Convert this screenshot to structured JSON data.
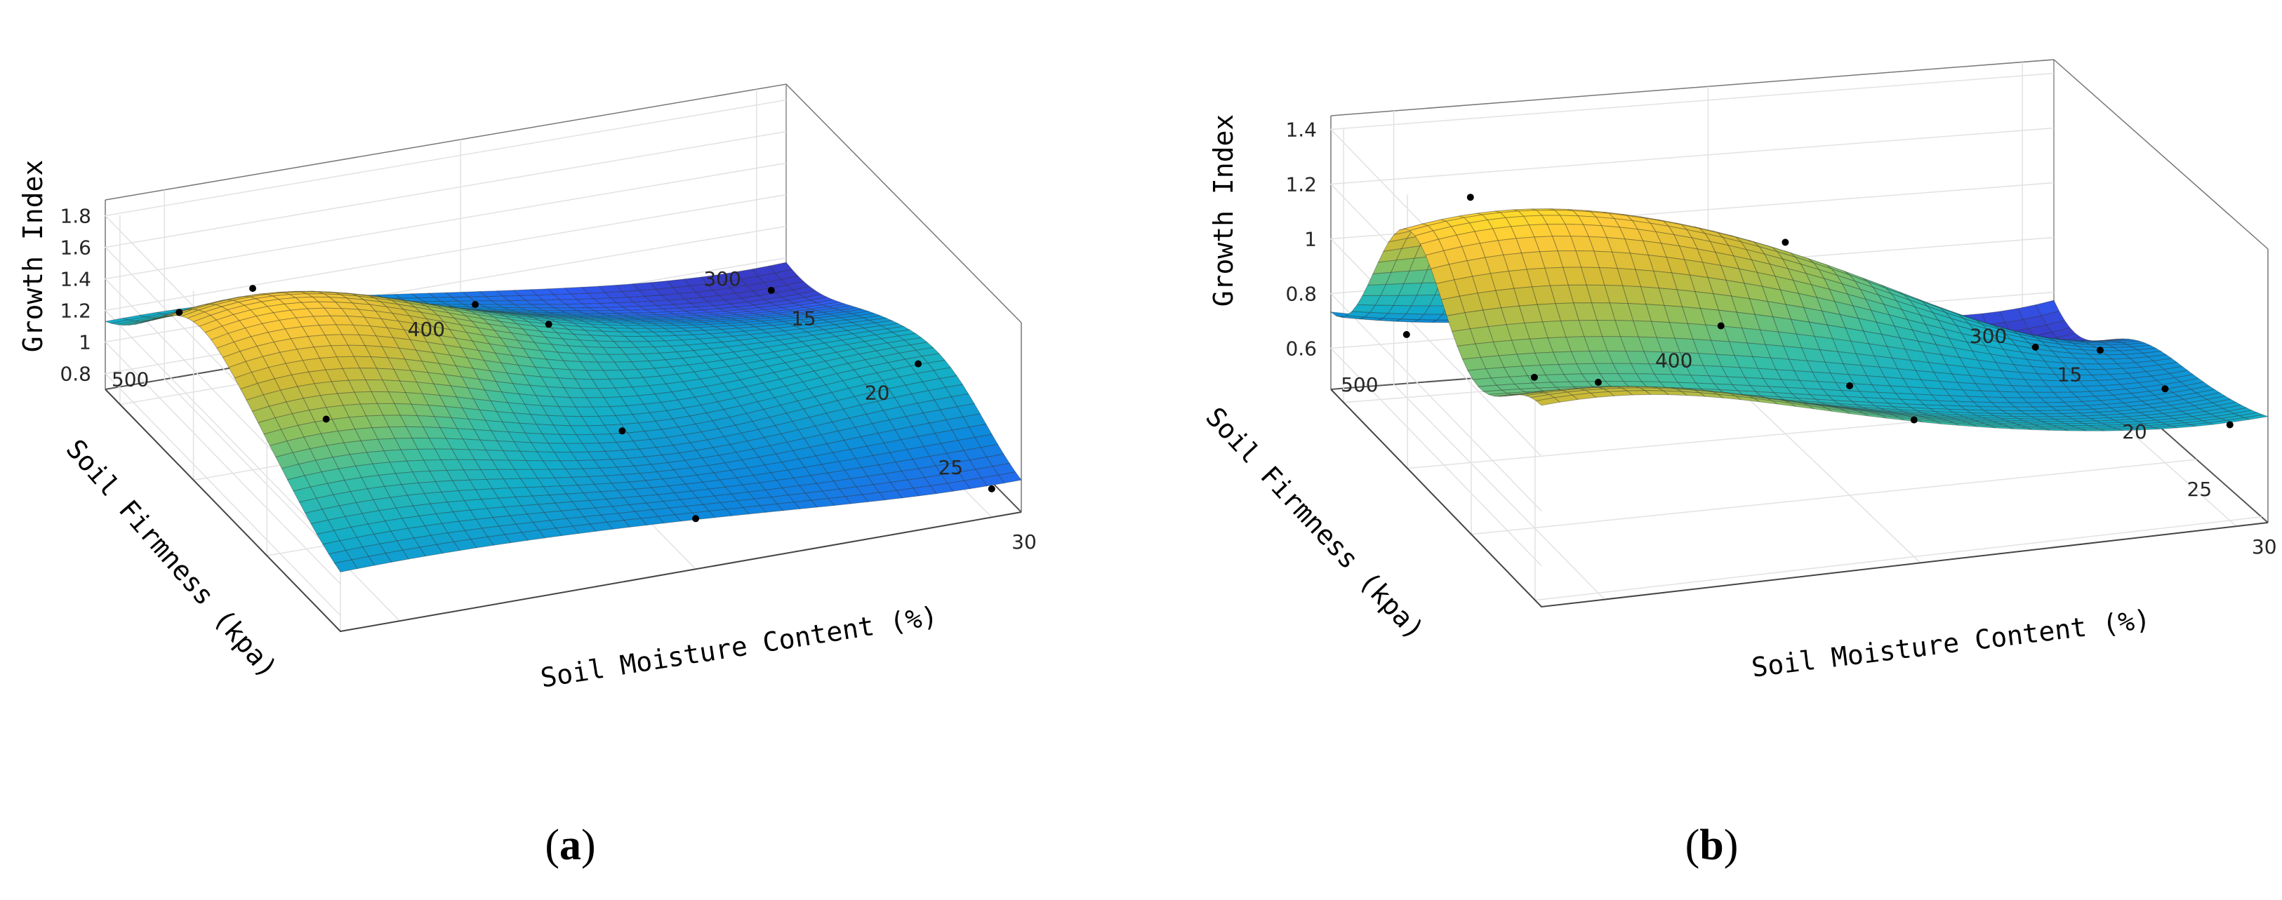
{
  "chart_data": [
    {
      "panel": "a",
      "caption_label": "a",
      "type": "surface",
      "xlabel": "Soil Moisture Content (%)",
      "ylabel": "Soil Firmness (kpa)",
      "zlabel": "Growth Index",
      "xlim": [
        14,
        30
      ],
      "ylim": [
        290,
        520
      ],
      "zlim": [
        0.7,
        1.9
      ],
      "xticks": [
        15,
        20,
        25,
        30
      ],
      "yticks": [
        300,
        400,
        500
      ],
      "zticks": [
        0.8,
        1,
        1.2,
        1.4,
        1.6,
        1.8
      ],
      "ztick_labels": [
        "0.8",
        "1",
        "1.2",
        "1.4",
        "1.6",
        "1.8"
      ],
      "colormap": [
        "#3e26a8",
        "#2f5cf4",
        "#0d87de",
        "#13aec8",
        "#38bfa4",
        "#8cc05e",
        "#d0ba36",
        "#feca39",
        "#f9fb0e"
      ],
      "observed_points": [
        {
          "x": 15,
          "y": 500,
          "z": 1.22
        },
        {
          "x": 20,
          "y": 500,
          "z": 1.85
        },
        {
          "x": 25,
          "y": 500,
          "z": 1.5
        },
        {
          "x": 15,
          "y": 400,
          "z": 0.95
        },
        {
          "x": 20,
          "y": 400,
          "z": 1.3
        },
        {
          "x": 25,
          "y": 400,
          "z": 1.1
        },
        {
          "x": 30,
          "y": 400,
          "z": 1.02
        },
        {
          "x": 15,
          "y": 300,
          "z": 0.72
        },
        {
          "x": 25,
          "y": 300,
          "z": 1.2
        },
        {
          "x": 30,
          "y": 300,
          "z": 0.88
        }
      ]
    },
    {
      "panel": "b",
      "caption_label": "b",
      "type": "surface",
      "xlabel": "Soil Moisture Content (%)",
      "ylabel": "Soil Firmness (kpa)",
      "zlabel": "Growth Index",
      "xlim": [
        14,
        30.5
      ],
      "ylim": [
        290,
        520
      ],
      "zlim": [
        0.45,
        1.45
      ],
      "xticks": [
        15,
        20,
        25,
        30
      ],
      "yticks": [
        300,
        400,
        500
      ],
      "zticks": [
        0.6,
        0.8,
        1,
        1.2,
        1.4
      ],
      "ztick_labels": [
        "0.6",
        "0.8",
        "1",
        "1.2",
        "1.4"
      ],
      "colormap": [
        "#3e26a8",
        "#2f5cf4",
        "#0d87de",
        "#13aec8",
        "#38bfa4",
        "#8cc05e",
        "#d0ba36",
        "#feca39",
        "#f9fb0e"
      ],
      "observed_points": [
        {
          "x": 15,
          "y": 500,
          "z": 0.68
        },
        {
          "x": 20,
          "y": 500,
          "z": 1.42
        },
        {
          "x": 25,
          "y": 500,
          "z": 1.0
        },
        {
          "x": 30,
          "y": 500,
          "z": 1.22
        },
        {
          "x": 15,
          "y": 400,
          "z": 0.62
        },
        {
          "x": 20,
          "y": 400,
          "z": 1.15
        },
        {
          "x": 25,
          "y": 400,
          "z": 0.85
        },
        {
          "x": 30,
          "y": 400,
          "z": 0.95
        },
        {
          "x": 15,
          "y": 300,
          "z": 0.45
        },
        {
          "x": 20,
          "y": 300,
          "z": 0.65
        },
        {
          "x": 25,
          "y": 300,
          "z": 0.72
        },
        {
          "x": 30,
          "y": 300,
          "z": 0.8
        }
      ]
    }
  ]
}
